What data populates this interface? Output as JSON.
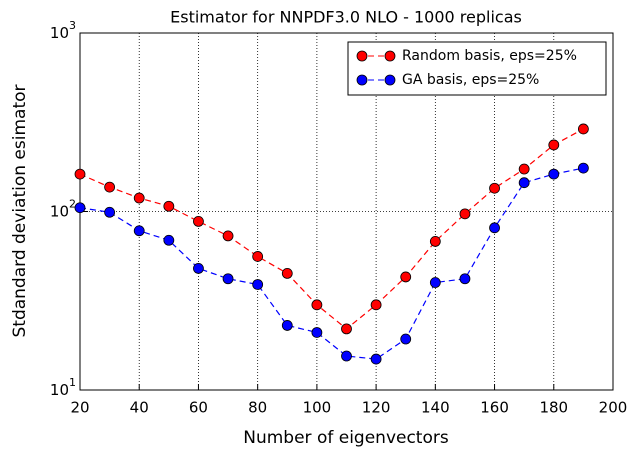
{
  "chart_data": {
    "type": "line",
    "log_y": true,
    "grid": true,
    "legend_position": "upper-right",
    "title": "Estimator for NNPDF3.0 NLO - 1000 replicas",
    "x_label": "Number of eigenvectors",
    "y_label": "Stdandard deviation esimator",
    "x": [
      20,
      30,
      40,
      50,
      60,
      70,
      80,
      90,
      100,
      110,
      120,
      130,
      140,
      150,
      160,
      170,
      180,
      190
    ],
    "series": [
      {
        "name": "Random basis, eps=25%",
        "color": "#ff0000",
        "values": [
          162,
          137,
          119,
          107,
          88,
          73,
          56,
          45,
          30,
          22,
          30,
          43,
          68,
          97,
          135,
          173,
          236,
          290
        ]
      },
      {
        "name": "GA basis, eps=25%",
        "color": "#0000ff",
        "values": [
          105,
          99,
          78,
          69,
          48,
          42,
          39,
          23,
          21,
          15.5,
          14.9,
          19.3,
          40,
          42,
          81,
          145,
          162,
          175
        ]
      }
    ],
    "xlim": [
      20,
      200
    ],
    "xticks": [
      20,
      40,
      60,
      80,
      100,
      120,
      140,
      160,
      180,
      200
    ],
    "ylim": [
      10,
      1000
    ],
    "yticks": [
      {
        "value": 10,
        "label": "10^1"
      },
      {
        "value": 100,
        "label": "10^2"
      },
      {
        "value": 1000,
        "label": "10^3"
      }
    ]
  }
}
